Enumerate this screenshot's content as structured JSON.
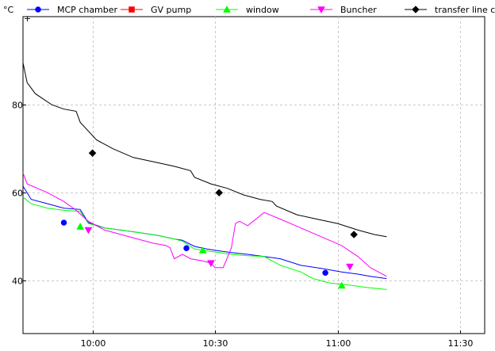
{
  "chart_data": {
    "type": "line",
    "ylabel": "°C",
    "xlim": [
      "09:43",
      "11:36"
    ],
    "ylim": [
      28,
      100
    ],
    "x_ticks": [
      "10:00",
      "10:30",
      "11:00",
      "11:30"
    ],
    "y_ticks": [
      40,
      60,
      80
    ],
    "grid": true,
    "legend_position": "top",
    "series": [
      {
        "name": "MCP chamber",
        "color": "#0000ff",
        "marker": "circle",
        "x": [
          "09:43",
          "09:45",
          "09:49",
          "09:53",
          "09:57",
          "09:59",
          "10:03",
          "10:07",
          "10:11",
          "10:16",
          "10:20",
          "10:22",
          "10:25",
          "10:28",
          "10:31",
          "10:34",
          "10:38",
          "10:42",
          "10:46",
          "10:51",
          "10:56",
          "11:01",
          "11:05",
          "11:08",
          "11:12"
        ],
        "y": [
          61.5,
          58.5,
          57.5,
          56.5,
          56.2,
          53.2,
          52,
          51.5,
          51,
          50.3,
          49.5,
          49.2,
          47.8,
          47.2,
          46.8,
          46.4,
          46,
          45.5,
          45,
          43.5,
          42.8,
          42,
          41.5,
          41,
          40.5
        ],
        "marker_x": [
          "09:53",
          "10:23",
          "10:57"
        ],
        "marker_y": [
          53.2,
          47.4,
          41.8
        ]
      },
      {
        "name": "GV pump",
        "color": "#ff0000",
        "marker": "square",
        "x": [],
        "y": []
      },
      {
        "name": "window",
        "color": "#00ff00",
        "marker": "triangle-up",
        "x": [
          "09:43",
          "09:45",
          "09:49",
          "09:53",
          "09:57",
          "09:59",
          "10:03",
          "10:07",
          "10:11",
          "10:16",
          "10:20",
          "10:22",
          "10:25",
          "10:28",
          "10:31",
          "10:34",
          "10:38",
          "10:42",
          "10:46",
          "10:51",
          "10:54",
          "10:58",
          "11:03",
          "11:07",
          "11:12"
        ],
        "y": [
          59,
          57.5,
          56.5,
          56,
          55.8,
          53,
          52,
          51.5,
          51,
          50.3,
          49.5,
          49,
          47.2,
          46.8,
          46.4,
          46,
          45.7,
          45.5,
          43.5,
          42,
          40.5,
          39.5,
          39,
          38.5,
          38
        ],
        "marker_x": [
          "09:57",
          "10:27",
          "11:01"
        ],
        "marker_y": [
          52.3,
          46.9,
          38.9
        ]
      },
      {
        "name": "Buncher",
        "color": "#ff00ff",
        "marker": "triangle-down",
        "x": [
          "09:43",
          "09:44",
          "09:49",
          "09:53",
          "09:56",
          "09:59",
          "10:03",
          "10:07",
          "10:11",
          "10:15",
          "10:18",
          "10:19",
          "10:20",
          "10:22",
          "10:24",
          "10:27",
          "10:29",
          "10:30",
          "10:32",
          "10:34",
          "10:35",
          "10:36",
          "10:37",
          "10:38",
          "10:42",
          "10:46",
          "10:51",
          "10:56",
          "11:01",
          "11:05",
          "11:08",
          "11:12"
        ],
        "y": [
          64.5,
          62,
          60,
          58,
          56,
          53.5,
          51.5,
          50.5,
          49.5,
          48.5,
          48,
          47.5,
          45,
          46,
          45,
          44.5,
          44,
          43,
          43,
          47.5,
          53,
          53.5,
          53,
          52.5,
          55.5,
          54,
          52,
          50,
          48,
          45.5,
          43,
          41
        ],
        "marker_x": [
          "09:59",
          "10:29",
          "11:03"
        ],
        "marker_y": [
          51.5,
          44,
          43.2
        ]
      },
      {
        "name": "transfer line cross",
        "color": "#000000",
        "marker": "diamond",
        "x": [
          "09:43",
          "09:44",
          "09:46",
          "09:50",
          "09:53",
          "09:56",
          "09:57",
          "10:01",
          "10:05",
          "10:10",
          "10:15",
          "10:20",
          "10:24",
          "10:25",
          "10:29",
          "10:33",
          "10:37",
          "10:41",
          "10:44",
          "10:45",
          "10:50",
          "10:55",
          "11:00",
          "11:05",
          "11:09",
          "11:12"
        ],
        "y": [
          89.5,
          85,
          82.5,
          80,
          79,
          78.5,
          76,
          72,
          70,
          68,
          67,
          66,
          65,
          63.5,
          62,
          61,
          59.5,
          58.5,
          58,
          57,
          55,
          54,
          53,
          51.5,
          50.5,
          50
        ],
        "marker_x": [
          "10:00",
          "10:31",
          "11:04"
        ],
        "marker_y": [
          69,
          60,
          50.5
        ]
      }
    ]
  }
}
